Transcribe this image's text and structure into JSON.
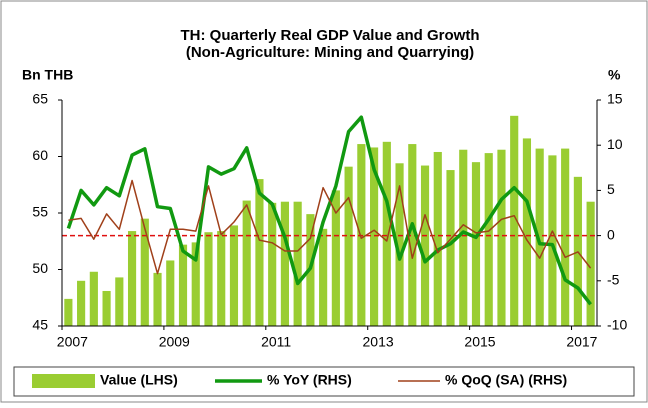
{
  "chart_data": {
    "type": "bar_line",
    "title": "TH: Quarterly Real GDP Value and Growth",
    "subtitle": "(Non-Agriculture: Mining and Quarrying)",
    "ylabel": "Bn THB",
    "y2label": "%",
    "categories": [
      "2007",
      null,
      null,
      null,
      null,
      null,
      null,
      null,
      "2009",
      null,
      null,
      null,
      null,
      null,
      null,
      null,
      "2011",
      null,
      null,
      null,
      null,
      null,
      null,
      null,
      "2013",
      null,
      null,
      null,
      null,
      null,
      null,
      null,
      "2015",
      null,
      null,
      null,
      null,
      null,
      null,
      null,
      "2017",
      null
    ],
    "series": [
      {
        "name": "Value (LHS)",
        "kind": "bar",
        "axis": "y",
        "color": "#9acd32",
        "values": [
          47.4,
          49.0,
          49.8,
          48.1,
          49.3,
          53.4,
          54.5,
          49.7,
          50.8,
          52.2,
          52.4,
          53.3,
          53.4,
          53.9,
          56.1,
          58.0,
          55.9,
          56.0,
          56.0,
          54.9,
          53.6,
          57.0,
          59.1,
          61.1,
          60.8,
          61.3,
          59.4,
          61.1,
          59.2,
          60.4,
          58.8,
          60.6,
          59.5,
          60.3,
          60.6,
          63.6,
          61.6,
          60.7,
          60.1,
          60.7,
          58.2,
          56.0
        ]
      },
      {
        "name": "% YoY (RHS)",
        "kind": "line",
        "axis": "y2",
        "color": "#119911",
        "values": [
          0.8,
          5.0,
          3.4,
          5.3,
          4.4,
          8.9,
          9.6,
          3.2,
          3.0,
          -1.7,
          -2.7,
          7.6,
          6.8,
          7.4,
          9.7,
          4.7,
          3.5,
          -0.2,
          -5.3,
          -3.6,
          1.5,
          5.5,
          11.5,
          13.1,
          7.3,
          3.8,
          -2.6,
          1.3,
          -2.9,
          -1.6,
          -0.9,
          0.4,
          -0.2,
          1.8,
          4.0,
          5.3,
          3.8,
          -0.9,
          -1.0,
          -4.9,
          -5.8,
          -7.6
        ]
      },
      {
        "name": "% QoQ (SA) (RHS)",
        "kind": "line",
        "axis": "y2",
        "color": "#a0401a",
        "values": [
          1.7,
          1.9,
          -0.4,
          2.4,
          0.7,
          6.1,
          0.8,
          -4.2,
          0.7,
          0.7,
          0.5,
          5.5,
          0.1,
          1.5,
          3.4,
          -0.5,
          -0.8,
          -1.7,
          -1.7,
          -0.3,
          5.3,
          2.5,
          4.2,
          -0.3,
          0.6,
          -0.6,
          5.5,
          -2.5,
          2.3,
          -1.9,
          -0.4,
          1.2,
          0.3,
          0.5,
          1.8,
          2.2,
          -0.5,
          -2.5,
          0.5,
          -2.4,
          -1.8,
          -3.6
        ]
      }
    ],
    "ylim": [
      45,
      65
    ],
    "yticks": [
      45,
      50,
      55,
      60,
      65
    ],
    "y2lim": [
      -10,
      15
    ],
    "y2ticks": [
      -10,
      -5,
      0,
      5,
      10,
      15
    ],
    "hline": {
      "axis": "y2",
      "value": 0,
      "color": "#e01010"
    },
    "legend": "bottom"
  }
}
